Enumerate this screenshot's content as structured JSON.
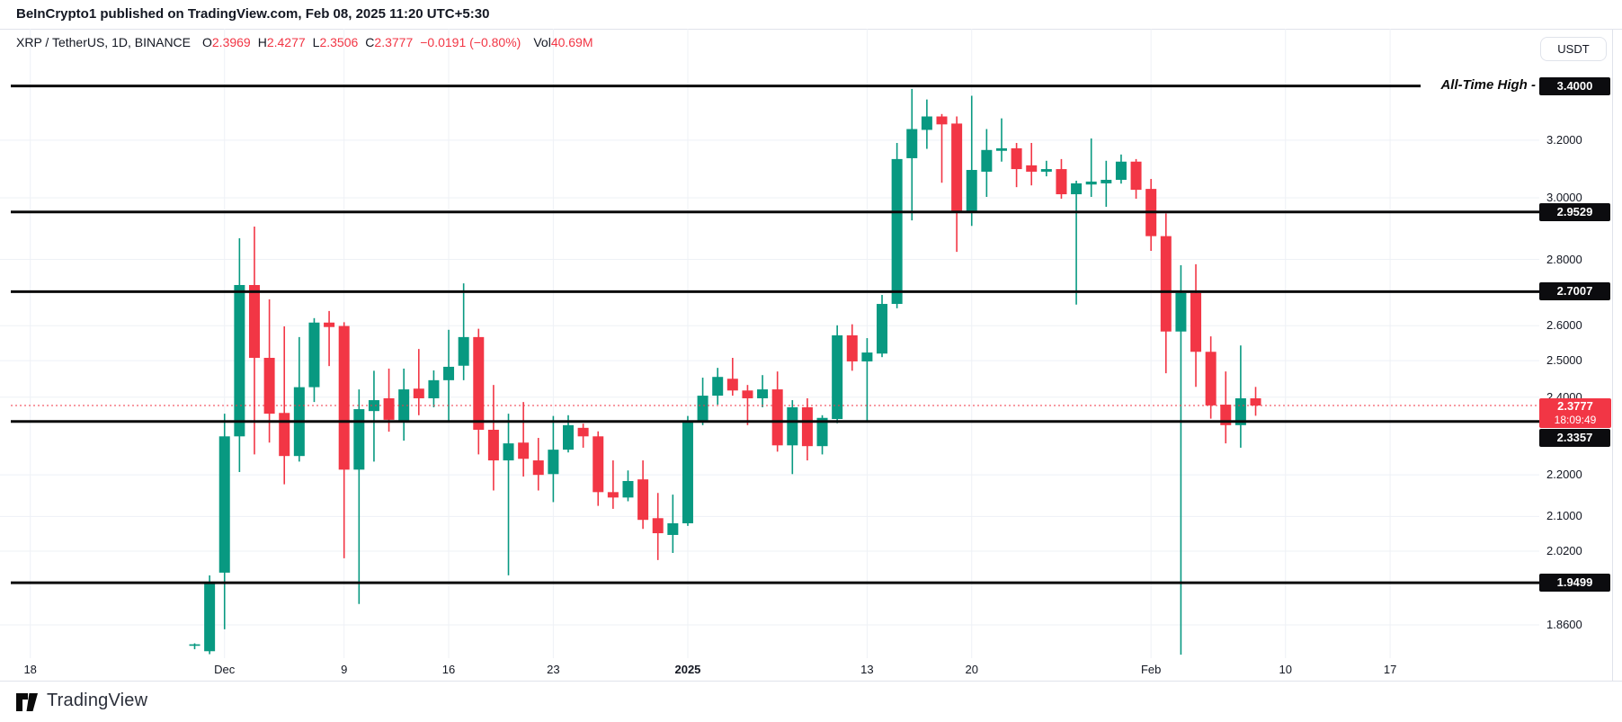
{
  "colors": {
    "up": "#089981",
    "down": "#F23645",
    "line_black": "#0a0a0a",
    "grid": "#eef1f6",
    "accent_red": "#F23645",
    "badge_black": "#0c0c0f"
  },
  "header": {
    "title": "BeInCrypto1 published on TradingView.com, Feb 08, 2025 11:20 UTC+5:30"
  },
  "toolbar": {
    "currency_label": "USDT"
  },
  "legend": {
    "symbol": "XRP / TetherUS, 1D, BINANCE",
    "ohlc": [
      {
        "label": "O",
        "value": "2.3969"
      },
      {
        "label": "H",
        "value": "2.4277"
      },
      {
        "label": "L",
        "value": "2.3506"
      },
      {
        "label": "C",
        "value": "2.3777"
      }
    ],
    "change": "−0.0191 (−0.80%)",
    "volume_label": "Vol",
    "volume_value": "40.69M"
  },
  "annotations": {
    "ath_label": "All-Time High -"
  },
  "price_axis": {
    "ticks": [
      {
        "label": "3.2000",
        "price": 3.2
      },
      {
        "label": "3.0000",
        "price": 3.0
      },
      {
        "label": "2.8000",
        "price": 2.8
      },
      {
        "label": "2.6000",
        "price": 2.6
      },
      {
        "label": "2.5000",
        "price": 2.5
      },
      {
        "label": "2.4000",
        "price": 2.4
      },
      {
        "label": "2.2000",
        "price": 2.2
      },
      {
        "label": "2.1000",
        "price": 2.1
      },
      {
        "label": "2.0200",
        "price": 2.02
      },
      {
        "label": "1.8600",
        "price": 1.86
      }
    ],
    "line_badges": [
      {
        "label": "3.4000",
        "price": 3.4
      },
      {
        "label": "2.9529",
        "price": 2.9529
      },
      {
        "label": "2.7007",
        "price": 2.7007
      },
      {
        "label": "2.3357",
        "price": 2.3357
      },
      {
        "label": "1.9499",
        "price": 1.9499
      }
    ],
    "current": {
      "label": "2.3777",
      "countdown": "18:09:49",
      "price": 2.3777
    }
  },
  "time_axis": {
    "ticks": [
      {
        "label": "18",
        "candle_index": -11,
        "bold": false
      },
      {
        "label": "Dec",
        "candle_index": 2,
        "bold": false
      },
      {
        "label": "9",
        "candle_index": 10,
        "bold": false
      },
      {
        "label": "16",
        "candle_index": 17,
        "bold": false
      },
      {
        "label": "23",
        "candle_index": 24,
        "bold": false
      },
      {
        "label": "2025",
        "candle_index": 33,
        "bold": true
      },
      {
        "label": "13",
        "candle_index": 45,
        "bold": false
      },
      {
        "label": "20",
        "candle_index": 52,
        "bold": false
      },
      {
        "label": "Feb",
        "candle_index": 64,
        "bold": false
      },
      {
        "label": "10",
        "candle_index": 73,
        "bold": false
      },
      {
        "label": "17",
        "candle_index": 80,
        "bold": false
      }
    ]
  },
  "footer": {
    "logo_text": "TradingView"
  },
  "chart_data": {
    "type": "candlestick",
    "symbol": "XRP/USDT",
    "exchange": "BINANCE",
    "interval": "1D",
    "scale": "log",
    "grid": true,
    "ylim_visible": [
      1.79,
      3.62
    ],
    "dates": [
      "2024-11-29",
      "2024-11-30",
      "2024-12-01",
      "2024-12-02",
      "2024-12-03",
      "2024-12-04",
      "2024-12-05",
      "2024-12-06",
      "2024-12-07",
      "2024-12-08",
      "2024-12-09",
      "2024-12-10",
      "2024-12-11",
      "2024-12-12",
      "2024-12-13",
      "2024-12-14",
      "2024-12-15",
      "2024-12-16",
      "2024-12-17",
      "2024-12-18",
      "2024-12-19",
      "2024-12-20",
      "2024-12-21",
      "2024-12-22",
      "2024-12-23",
      "2024-12-24",
      "2024-12-25",
      "2024-12-26",
      "2024-12-27",
      "2024-12-28",
      "2024-12-29",
      "2024-12-30",
      "2024-12-31",
      "2025-01-01",
      "2025-01-02",
      "2025-01-03",
      "2025-01-04",
      "2025-01-05",
      "2025-01-06",
      "2025-01-07",
      "2025-01-08",
      "2025-01-09",
      "2025-01-10",
      "2025-01-11",
      "2025-01-12",
      "2025-01-13",
      "2025-01-14",
      "2025-01-15",
      "2025-01-16",
      "2025-01-17",
      "2025-01-18",
      "2025-01-19",
      "2025-01-20",
      "2025-01-21",
      "2025-01-22",
      "2025-01-23",
      "2025-01-24",
      "2025-01-25",
      "2025-01-26",
      "2025-01-27",
      "2025-01-28",
      "2025-01-29",
      "2025-01-30",
      "2025-01-31",
      "2025-02-01",
      "2025-02-02",
      "2025-02-03",
      "2025-02-04",
      "2025-02-05",
      "2025-02-06",
      "2025-02-07",
      "2025-02-08"
    ],
    "open": [
      1.817,
      1.806,
      1.972,
      2.297,
      2.721,
      2.508,
      2.358,
      2.247,
      2.427,
      2.609,
      2.599,
      2.213,
      2.363,
      2.397,
      2.338,
      2.423,
      2.397,
      2.446,
      2.486,
      2.567,
      2.314,
      2.236,
      2.281,
      2.236,
      2.202,
      2.263,
      2.319,
      2.297,
      2.158,
      2.145,
      2.189,
      2.096,
      2.057,
      2.084,
      2.333,
      2.404,
      2.45,
      2.418,
      2.397,
      2.421,
      2.274,
      2.373,
      2.272,
      2.342,
      2.572,
      2.498,
      2.52,
      2.664,
      3.136,
      3.237,
      3.286,
      3.26,
      2.951,
      3.089,
      3.162,
      3.171,
      3.111,
      3.089,
      3.098,
      3.012,
      3.045,
      3.049,
      3.061,
      3.124,
      3.03,
      2.874,
      2.583,
      2.697,
      2.525,
      2.38,
      2.326,
      2.3969
    ],
    "high": [
      1.822,
      1.966,
      2.356,
      2.867,
      2.905,
      2.678,
      2.598,
      2.567,
      2.622,
      2.643,
      2.61,
      2.421,
      2.472,
      2.478,
      2.478,
      2.533,
      2.473,
      2.588,
      2.726,
      2.591,
      2.433,
      2.356,
      2.387,
      2.293,
      2.35,
      2.352,
      2.33,
      2.31,
      2.236,
      2.211,
      2.236,
      2.156,
      2.152,
      2.35,
      2.453,
      2.48,
      2.508,
      2.433,
      2.46,
      2.47,
      2.392,
      2.397,
      2.352,
      2.601,
      2.604,
      2.564,
      2.691,
      3.19,
      3.389,
      3.349,
      3.295,
      3.286,
      3.363,
      3.24,
      3.279,
      3.19,
      3.19,
      3.127,
      3.133,
      3.058,
      3.206,
      3.127,
      3.149,
      3.133,
      3.064,
      2.948,
      2.782,
      2.785,
      2.569,
      2.47,
      2.543,
      2.4277
    ],
    "low": [
      1.81,
      1.8,
      1.851,
      2.207,
      2.251,
      2.281,
      2.177,
      2.233,
      2.387,
      2.485,
      2.004,
      1.904,
      2.233,
      2.309,
      2.286,
      2.352,
      2.373,
      2.338,
      2.446,
      2.251,
      2.162,
      1.966,
      2.196,
      2.162,
      2.134,
      2.256,
      2.268,
      2.125,
      2.118,
      2.136,
      2.071,
      2.0,
      2.016,
      2.078,
      2.326,
      2.38,
      2.404,
      2.326,
      2.373,
      2.258,
      2.202,
      2.236,
      2.251,
      2.331,
      2.472,
      2.338,
      2.51,
      2.651,
      2.925,
      3.169,
      3.051,
      2.824,
      2.907,
      3.003,
      3.124,
      3.036,
      3.042,
      3.073,
      2.997,
      2.662,
      3.003,
      2.97,
      3.048,
      2.997,
      2.827,
      2.465,
      1.799,
      2.428,
      2.343,
      2.279,
      2.268,
      2.3506
    ],
    "close": [
      1.82,
      1.952,
      2.297,
      2.721,
      2.508,
      2.356,
      2.247,
      2.427,
      2.609,
      2.596,
      2.213,
      2.368,
      2.392,
      2.34,
      2.421,
      2.397,
      2.446,
      2.483,
      2.567,
      2.314,
      2.236,
      2.279,
      2.24,
      2.2,
      2.263,
      2.326,
      2.297,
      2.158,
      2.145,
      2.185,
      2.092,
      2.061,
      2.084,
      2.338,
      2.404,
      2.455,
      2.418,
      2.397,
      2.421,
      2.274,
      2.373,
      2.272,
      2.345,
      2.572,
      2.498,
      2.523,
      2.664,
      3.133,
      3.24,
      3.286,
      3.257,
      2.951,
      3.095,
      3.165,
      3.171,
      3.098,
      3.089,
      3.098,
      3.012,
      3.049,
      3.055,
      3.061,
      3.124,
      3.027,
      2.874,
      2.583,
      2.697,
      2.525,
      2.378,
      2.326,
      2.397,
      2.3777
    ],
    "horizontal_lines": [
      {
        "price": 3.4,
        "label": "3.4000",
        "note": "All-Time High"
      },
      {
        "price": 2.9529,
        "label": "2.9529"
      },
      {
        "price": 2.7007,
        "label": "2.7007"
      },
      {
        "price": 2.3357,
        "label": "2.3357"
      },
      {
        "price": 1.9499,
        "label": "1.9499"
      }
    ],
    "current_price_line": {
      "price": 2.3777,
      "style": "dotted",
      "color": "#F23645"
    }
  }
}
